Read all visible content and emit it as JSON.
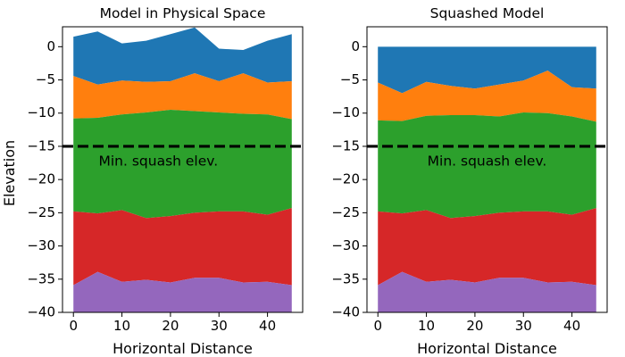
{
  "figure": {
    "ylabel": "Elevation"
  },
  "chart_data": [
    {
      "type": "area",
      "title": "Model in Physical Space",
      "xlabel": "Horizontal Distance",
      "ylabel": "Elevation",
      "xlim": [
        -2.25,
        47.25
      ],
      "ylim": [
        -40,
        3
      ],
      "xticks": [
        0,
        10,
        20,
        30,
        40
      ],
      "yticks": [
        0,
        -5,
        -10,
        -15,
        -20,
        -25,
        -30,
        -35,
        -40
      ],
      "x": [
        0,
        5,
        10,
        15,
        20,
        25,
        30,
        35,
        40,
        45
      ],
      "boundaries": [
        [
          1.5,
          2.3,
          0.5,
          0.9,
          1.9,
          2.9,
          -0.3,
          -0.5,
          0.9,
          1.9
        ],
        [
          -4.4,
          -5.7,
          -5.1,
          -5.3,
          -5.2,
          -4.0,
          -5.2,
          -4.0,
          -5.4,
          -5.2
        ],
        [
          -10.8,
          -10.7,
          -10.2,
          -9.9,
          -9.5,
          -9.7,
          -9.9,
          -10.1,
          -10.2,
          -10.9
        ],
        [
          -24.8,
          -25.1,
          -24.6,
          -25.8,
          -25.5,
          -25.0,
          -24.8,
          -24.8,
          -25.3,
          -24.3
        ],
        [
          -35.9,
          -33.9,
          -35.4,
          -35.1,
          -35.5,
          -34.8,
          -34.8,
          -35.5,
          -35.4,
          -35.9
        ]
      ],
      "bottom": -40,
      "colors": [
        "#1f77b4",
        "#ff7f0e",
        "#2ca02c",
        "#d62728",
        "#9467bd"
      ],
      "hline": {
        "y": -15,
        "style": "dashed",
        "color": "#000000"
      },
      "annotation": {
        "text": "Min. squash elev.",
        "x": 17.5,
        "y": -17.3
      }
    },
    {
      "type": "area",
      "title": "Squashed Model",
      "xlabel": "Horizontal Distance",
      "xlim": [
        -2.25,
        47.25
      ],
      "ylim": [
        -40,
        3
      ],
      "xticks": [
        0,
        10,
        20,
        30,
        40
      ],
      "yticks": [
        0,
        -5,
        -10,
        -15,
        -20,
        -25,
        -30,
        -35,
        -40
      ],
      "x": [
        0,
        5,
        10,
        15,
        20,
        25,
        30,
        35,
        40,
        45
      ],
      "boundaries": [
        [
          0,
          0,
          0,
          0,
          0,
          0,
          0,
          0,
          0,
          0
        ],
        [
          -5.4,
          -7.0,
          -5.3,
          -5.9,
          -6.3,
          -5.7,
          -5.1,
          -3.6,
          -6.1,
          -6.3
        ],
        [
          -11.1,
          -11.2,
          -10.4,
          -10.3,
          -10.3,
          -10.5,
          -9.9,
          -10.0,
          -10.5,
          -11.3
        ],
        [
          -24.8,
          -25.1,
          -24.6,
          -25.8,
          -25.5,
          -25.0,
          -24.8,
          -24.8,
          -25.3,
          -24.3
        ],
        [
          -35.9,
          -33.9,
          -35.4,
          -35.1,
          -35.5,
          -34.8,
          -34.8,
          -35.5,
          -35.4,
          -35.9
        ]
      ],
      "bottom": -40,
      "colors": [
        "#1f77b4",
        "#ff7f0e",
        "#2ca02c",
        "#d62728",
        "#9467bd"
      ],
      "hline": {
        "y": -15,
        "style": "dashed",
        "color": "#000000"
      },
      "annotation": {
        "text": "Min. squash elev.",
        "x": 22.5,
        "y": -17.3
      }
    }
  ]
}
